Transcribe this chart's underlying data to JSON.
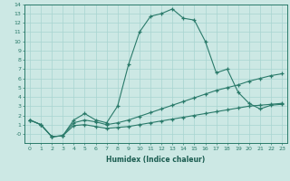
{
  "xlabel": "Humidex (Indice chaleur)",
  "x_values": [
    0,
    1,
    2,
    3,
    4,
    5,
    6,
    7,
    8,
    9,
    10,
    11,
    12,
    13,
    14,
    15,
    16,
    17,
    18,
    19,
    20,
    21,
    22,
    23
  ],
  "line1": [
    1.5,
    1.0,
    -0.3,
    -0.2,
    1.5,
    2.2,
    1.5,
    1.2,
    3.0,
    7.5,
    11.0,
    12.7,
    13.0,
    13.5,
    12.5,
    12.3,
    10.0,
    6.6,
    7.0,
    4.5,
    3.3,
    2.7,
    3.1,
    3.2
  ],
  "line2": [
    1.5,
    1.0,
    -0.3,
    -0.2,
    1.2,
    1.5,
    1.3,
    1.0,
    1.2,
    1.5,
    1.9,
    2.3,
    2.7,
    3.1,
    3.5,
    3.9,
    4.3,
    4.7,
    5.0,
    5.3,
    5.7,
    6.0,
    6.3,
    6.5
  ],
  "line3": [
    1.5,
    1.0,
    -0.3,
    -0.2,
    0.9,
    1.0,
    0.8,
    0.6,
    0.7,
    0.8,
    1.0,
    1.2,
    1.4,
    1.6,
    1.8,
    2.0,
    2.2,
    2.4,
    2.6,
    2.8,
    3.0,
    3.1,
    3.2,
    3.3
  ],
  "line_color": "#2a7a6a",
  "bg_color": "#cce8e4",
  "grid_color": "#a8d4d0",
  "ylim": [
    -1,
    14
  ],
  "xlim": [
    -0.5,
    23.5
  ],
  "yticks": [
    0,
    1,
    2,
    3,
    4,
    5,
    6,
    7,
    8,
    9,
    10,
    11,
    12,
    13,
    14
  ],
  "xticks": [
    0,
    1,
    2,
    3,
    4,
    5,
    6,
    7,
    8,
    9,
    10,
    11,
    12,
    13,
    14,
    15,
    16,
    17,
    18,
    19,
    20,
    21,
    22,
    23
  ],
  "tick_fontsize": 4.5,
  "xlabel_fontsize": 5.5,
  "bottom_label_color": "#1a5c50"
}
